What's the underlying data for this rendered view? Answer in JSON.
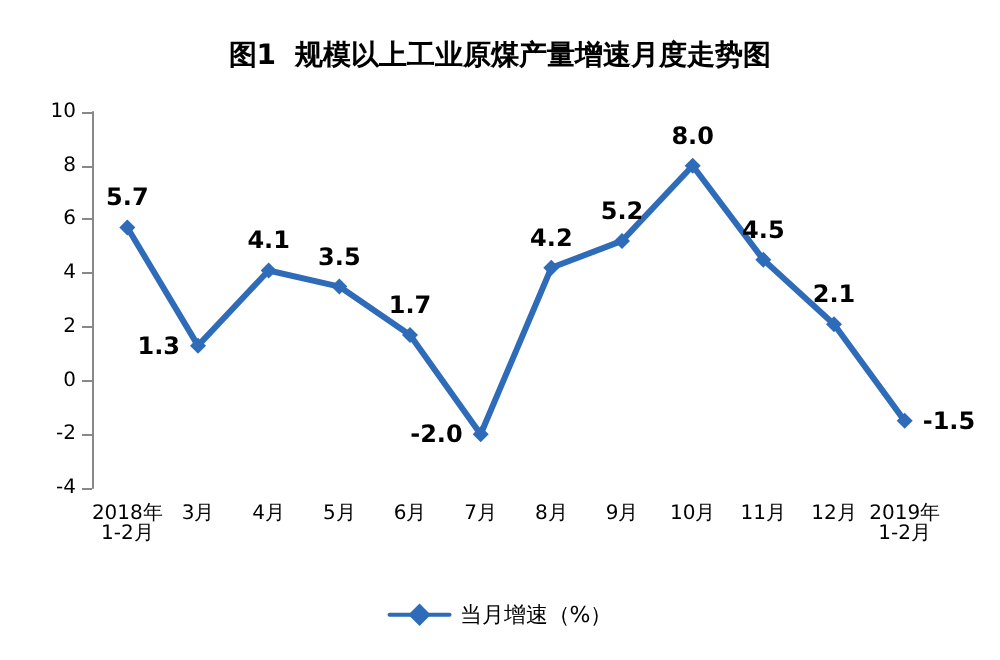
{
  "chart_data": {
    "type": "line",
    "title": "图1  规模以上工业原煤产量增速月度走势图",
    "categories": [
      "2018年\n1-2月",
      "3月",
      "4月",
      "5月",
      "6月",
      "7月",
      "8月",
      "9月",
      "10月",
      "11月",
      "12月",
      "2019年\n1-2月"
    ],
    "series": [
      {
        "name": "当月增速（%）",
        "color": "#2e6bb8",
        "values": [
          5.7,
          1.3,
          4.1,
          3.5,
          1.7,
          -2.0,
          4.2,
          5.2,
          8.0,
          4.5,
          2.1,
          -1.5
        ],
        "value_labels": [
          "5.7",
          "1.3",
          "4.1",
          "3.5",
          "1.7",
          "-2.0",
          "4.2",
          "5.2",
          "8.0",
          "4.5",
          "2.1",
          "-1.5"
        ]
      }
    ],
    "ylim": [
      -4,
      10
    ],
    "yticks": [
      -4,
      -2,
      0,
      2,
      4,
      6,
      8,
      10
    ],
    "grid": false,
    "legend": "bottom",
    "marker": "diamond",
    "line_style": "solid"
  }
}
